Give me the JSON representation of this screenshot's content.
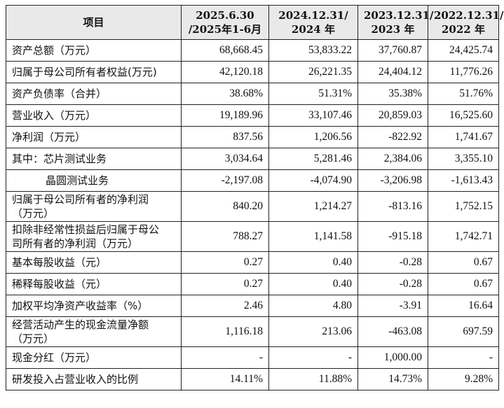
{
  "table": {
    "header": [
      [
        "项目"
      ],
      [
        "2025.6.30",
        "/2025年1-6月"
      ],
      [
        "2024.12.31/",
        "2024 年"
      ],
      [
        "2023.12.31/",
        "2023 年"
      ],
      [
        "2022.12.31/",
        "2022 年"
      ]
    ],
    "rows": [
      [
        [
          "资产总额（万元）"
        ],
        "68,668.45",
        "53,833.22",
        "37,760.87",
        "24,425.74"
      ],
      [
        [
          "归属于母公司所有者权益(万元)"
        ],
        "42,120.18",
        "26,221.35",
        "24,404.12",
        "11,776.26"
      ],
      [
        [
          "资产负债率（合并）"
        ],
        "38.68%",
        "51.31%",
        "35.38%",
        "51.76%"
      ],
      [
        [
          "营业收入（万元）"
        ],
        "19,189.96",
        "33,107.46",
        "20,859.03",
        "16,525.60"
      ],
      [
        [
          "净利润（万元）"
        ],
        "837.56",
        "1,206.56",
        "-822.92",
        "1,741.67"
      ],
      [
        [
          "其中：芯片测试业务"
        ],
        "3,034.64",
        "5,281.46",
        "2,384.06",
        "3,355.10"
      ],
      [
        [
          "晶圆测试业务"
        ],
        "-2,197.08",
        "-4,074.90",
        "-3,206.98",
        "-1,613.43"
      ],
      [
        [
          "归属于母公司所有者的净利润",
          "（万元）"
        ],
        "840.20",
        "1,214.27",
        "-813.16",
        "1,752.15"
      ],
      [
        [
          "扣除非经常性损益后归属于母公",
          "司所有者的净利润（万元）"
        ],
        "788.27",
        "1,141.58",
        "-915.18",
        "1,742.71"
      ],
      [
        [
          "基本每股收益（元）"
        ],
        "0.27",
        "0.40",
        "-0.28",
        "0.67"
      ],
      [
        [
          "稀释每股收益（元）"
        ],
        "0.27",
        "0.40",
        "-0.28",
        "0.67"
      ],
      [
        [
          "加权平均净资产收益率（%）"
        ],
        "2.46",
        "4.80",
        "-3.91",
        "16.64"
      ],
      [
        [
          "经营活动产生的现金流量净额",
          "（万元）"
        ],
        "1,116.18",
        "213.06",
        "-463.08",
        "697.59"
      ],
      [
        [
          "现金分红（万元）"
        ],
        "-",
        "-",
        "1,000.00",
        "-"
      ],
      [
        [
          "研发投入占营业收入的比例"
        ],
        "14.11%",
        "11.88%",
        "14.73%",
        "9.28%"
      ]
    ]
  }
}
